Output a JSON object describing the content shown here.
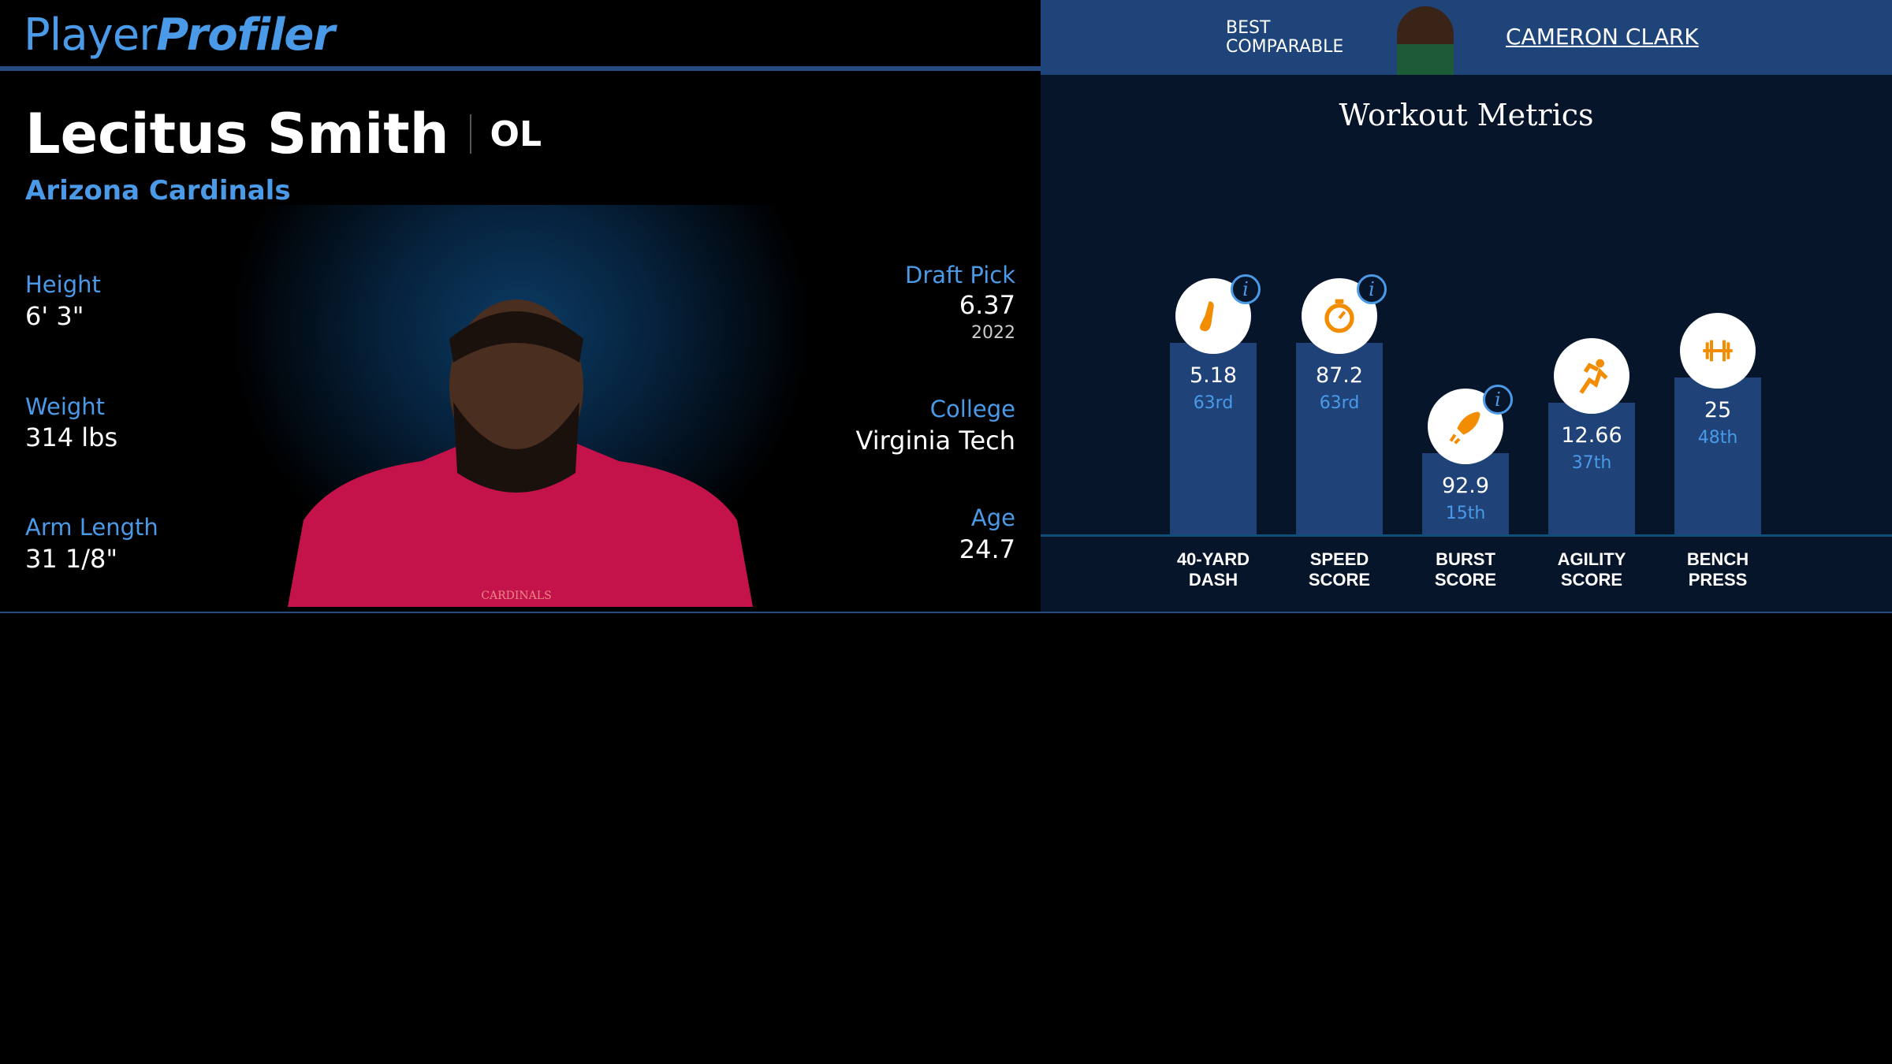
{
  "brand": {
    "part1": "Player",
    "part2": "Profiler"
  },
  "comparable": {
    "label1": "BEST",
    "label2": "COMPARABLE",
    "name": "CAMERON CLARK"
  },
  "player": {
    "name": "Lecitus Smith",
    "position": "OL",
    "team": "Arizona Cardinals"
  },
  "details_left": [
    {
      "label": "Height",
      "value": "6' 3\""
    },
    {
      "label": "Weight",
      "value": "314 lbs"
    },
    {
      "label": "Arm Length",
      "value": "31 1/8\""
    }
  ],
  "details_right": {
    "draft_label": "Draft Pick",
    "draft_value": "6.37",
    "draft_year": "2022",
    "college_label": "College",
    "college_value": "Virginia Tech",
    "age_label": "Age",
    "age_value": "24.7"
  },
  "jersey_text": "CARDINALS",
  "colors": {
    "accent": "#4a9ae8",
    "bar": "#1f4278",
    "icon": "#f28c00",
    "header": "#1f447a"
  },
  "chart_data": {
    "type": "bar",
    "title": "Workout Metrics",
    "metrics": [
      {
        "label1": "40-YARD",
        "label2": "DASH",
        "value": "5.18",
        "percentile_label": "63rd",
        "percentile": 63,
        "icon": "running-shoe-icon",
        "info": true
      },
      {
        "label1": "SPEED",
        "label2": "SCORE",
        "value": "87.2",
        "percentile_label": "63rd",
        "percentile": 63,
        "icon": "stopwatch-icon",
        "info": true
      },
      {
        "label1": "BURST",
        "label2": "SCORE",
        "value": "92.9",
        "percentile_label": "15th",
        "percentile": 15,
        "icon": "rocket-icon",
        "info": true
      },
      {
        "label1": "AGILITY",
        "label2": "SCORE",
        "value": "12.66",
        "percentile_label": "37th",
        "percentile": 37,
        "icon": "runner-icon",
        "info": false
      },
      {
        "label1": "BENCH",
        "label2": "PRESS",
        "value": "25",
        "percentile_label": "48th",
        "percentile": 48,
        "icon": "dumbbell-icon",
        "info": false
      }
    ]
  }
}
